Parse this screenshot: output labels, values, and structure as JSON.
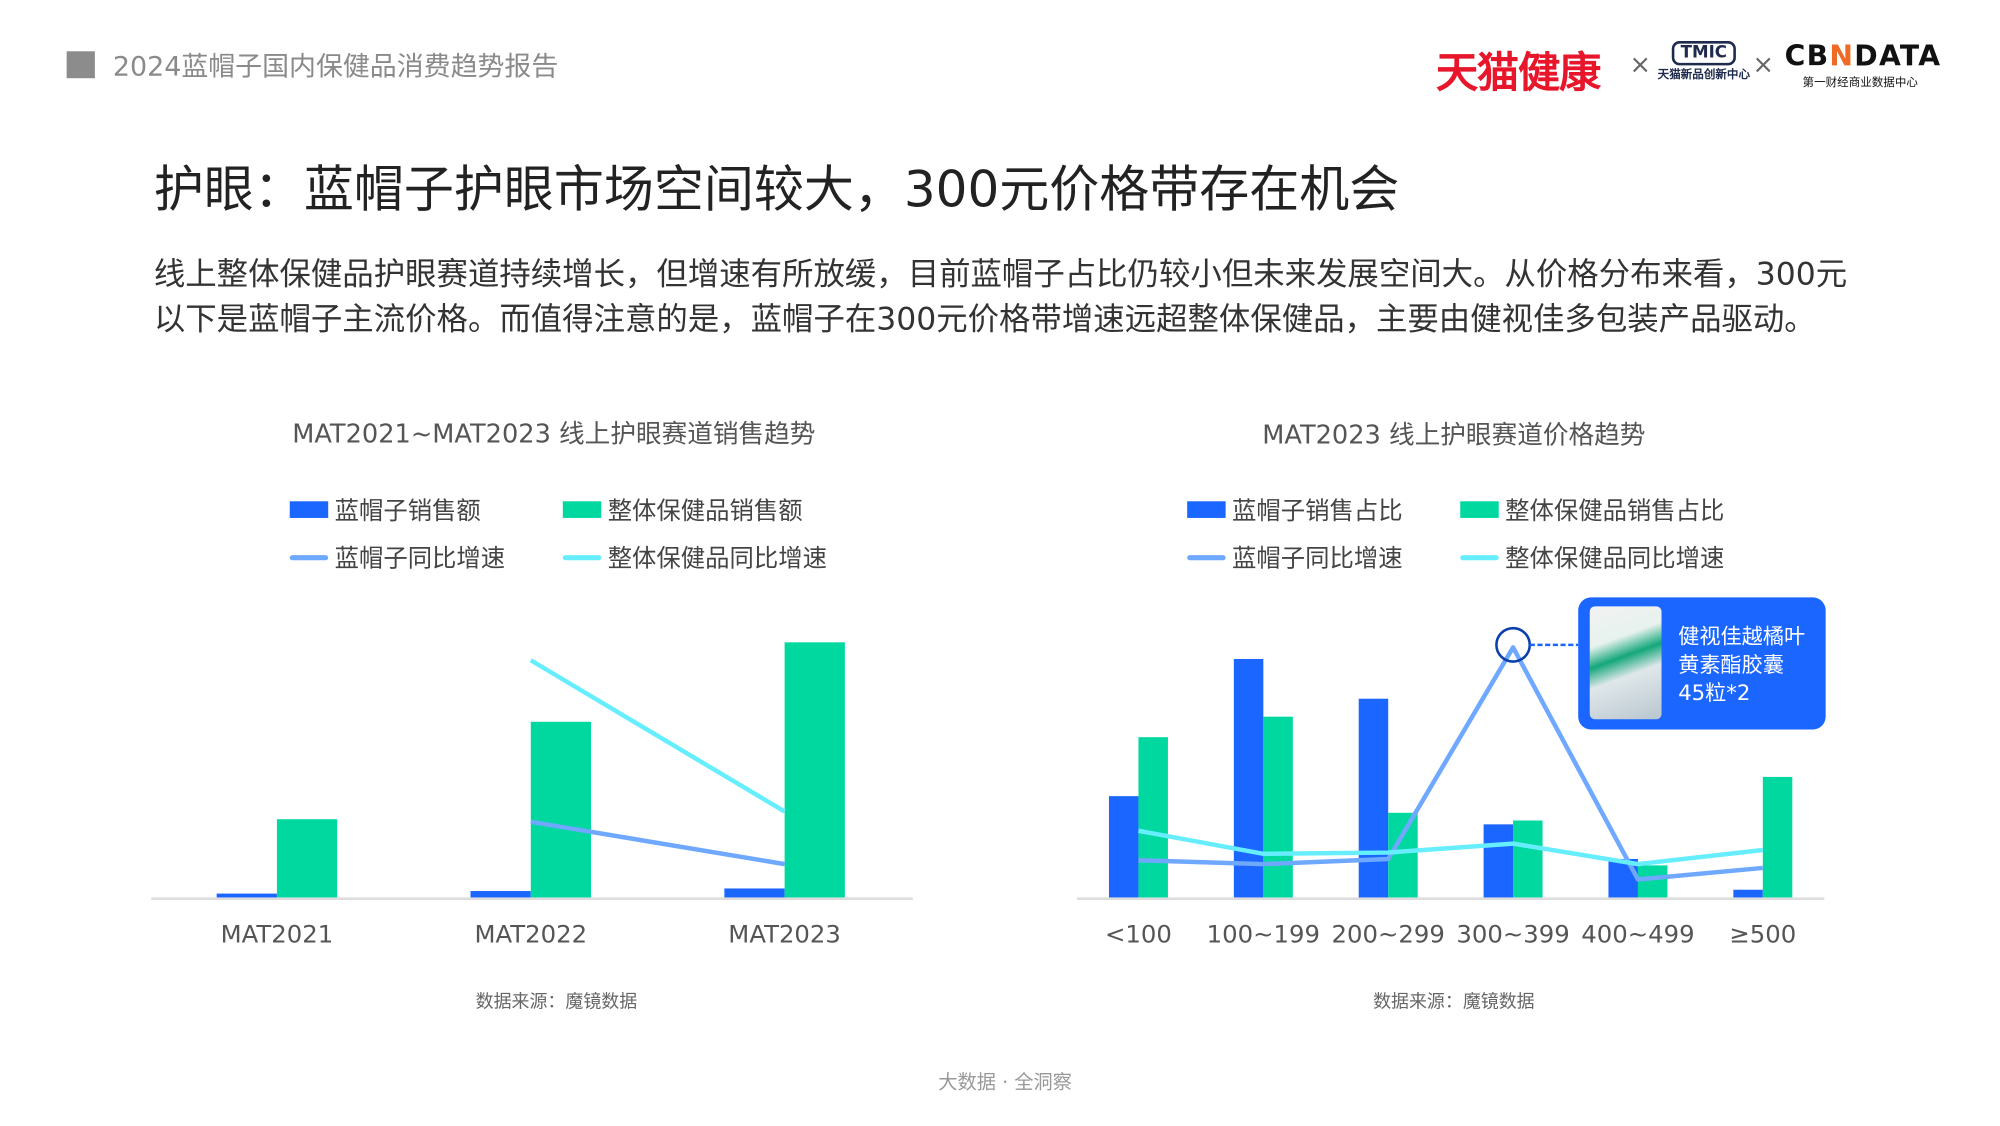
{
  "header": {
    "report_title": "2024蓝帽子国内保健品消费趋势报告"
  },
  "logos": {
    "tmall_health": "天猫健康",
    "separator": "×",
    "tmic": "TMIC",
    "tmic_sub": "天猫新品创新中心",
    "cbn_a": "CB",
    "cbn_n": "N",
    "cbn_b": "DATA",
    "cbn_sub": "第一财经商业数据中心"
  },
  "page_title": "护眼：蓝帽子护眼市场空间较大，300元价格带存在机会",
  "paragraph": "线上整体保健品护眼赛道持续增长，但增速有所放缓，目前蓝帽子占比仍较小但未来发展空间大。从价格分布来看，300元以下是蓝帽子主流价格。而值得注意的是，蓝帽子在300元价格带增速远超整体保健品，主要由健视佳多包装产品驱动。",
  "colors": {
    "blue_bar": "#1a66ff",
    "green_bar": "#00d8a0",
    "blue_line": "#6fa8ff",
    "cyan_line": "#66eeff"
  },
  "callout": {
    "line1": "健视佳越橘叶",
    "line2": "黄素酯胶囊",
    "line3": "45粒*2"
  },
  "footer": "大数据 · 全洞察",
  "chart_data": [
    {
      "type": "bar",
      "title": "MAT2021~MAT2023 线上护眼赛道销售趋势",
      "categories": [
        "MAT2021",
        "MAT2022",
        "MAT2023"
      ],
      "legend": [
        "蓝帽子销售额",
        "整体保健品销售额",
        "蓝帽子同比增速",
        "整体保健品同比增速"
      ],
      "series": [
        {
          "name": "蓝帽子销售额",
          "kind": "bar",
          "values": [
            3,
            5,
            7
          ]
        },
        {
          "name": "整体保健品销售额",
          "kind": "bar",
          "values": [
            61,
            137,
            199
          ]
        },
        {
          "name": "蓝帽子同比增速",
          "kind": "line",
          "values": [
            null,
            59,
            26
          ]
        },
        {
          "name": "整体保健品同比增速",
          "kind": "line",
          "values": [
            null,
            185,
            67
          ]
        }
      ],
      "ylim": [
        0,
        215
      ],
      "source": "数据来源：魔镜数据"
    },
    {
      "type": "bar",
      "title": "MAT2023 线上护眼赛道价格趋势",
      "categories": [
        "<100",
        "100~199",
        "200~299",
        "300~399",
        "400~499",
        "≥500"
      ],
      "legend": [
        "蓝帽子销售占比",
        "整体保健品销售占比",
        "蓝帽子同比增速",
        "整体保健品同比增速"
      ],
      "series": [
        {
          "name": "蓝帽子销售占比",
          "kind": "bar",
          "values": [
            79,
            186,
            155,
            57,
            30,
            6
          ]
        },
        {
          "name": "整体保健品销售占比",
          "kind": "bar",
          "values": [
            125,
            141,
            66,
            60,
            25,
            94
          ]
        },
        {
          "name": "蓝帽子同比增速",
          "kind": "line",
          "values": [
            29,
            26,
            30,
            195,
            14,
            23
          ]
        },
        {
          "name": "整体保健品同比增速",
          "kind": "line",
          "values": [
            52,
            34,
            35,
            42,
            26,
            37
          ]
        }
      ],
      "ylim": [
        0,
        215
      ],
      "highlight_category": "300~399",
      "source": "数据来源：魔镜数据"
    }
  ]
}
